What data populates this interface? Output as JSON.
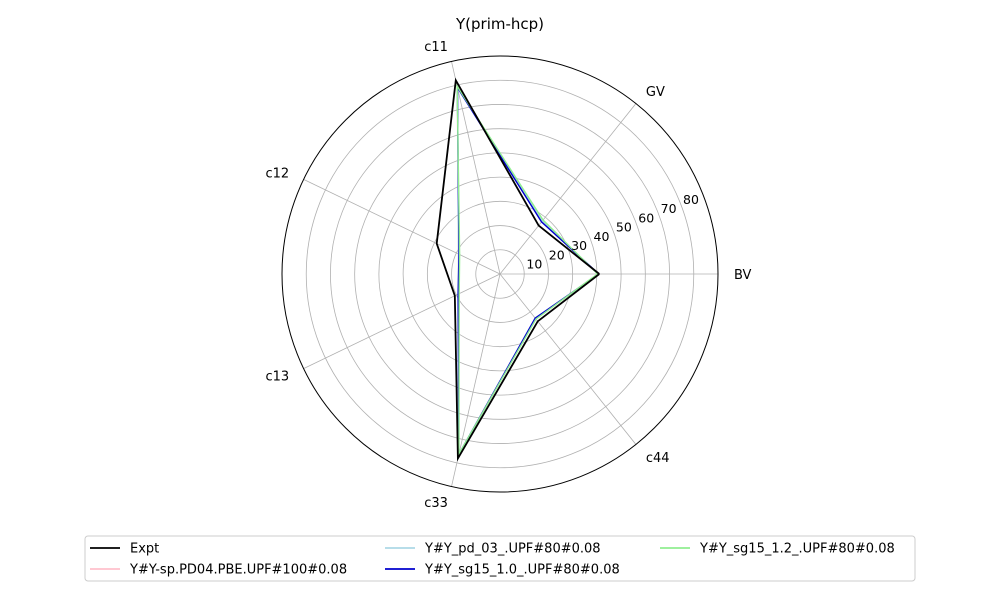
{
  "chart_data": {
    "type": "radar",
    "title": "Y(prim-hcp)",
    "axes": [
      "BV",
      "GV",
      "c11",
      "c12",
      "c13",
      "c33",
      "c44"
    ],
    "rlim": [
      0,
      90
    ],
    "radial_ticks": [
      10,
      20,
      30,
      40,
      50,
      60,
      70,
      80
    ],
    "grid": true,
    "legend_position": "bottom",
    "series": [
      {
        "name": "Expt",
        "color": "#000000",
        "values": [
          41,
          25.6,
          82,
          29,
          20.7,
          78.1,
          25
        ]
      },
      {
        "name": "Y#Y-sp.PD04.PBE.UPF#100#0.08",
        "color": "#ffc0cb",
        "values": [
          40.5,
          28.0,
          79.2,
          19.0,
          19.0,
          76.5,
          23.5
        ]
      },
      {
        "name": "Y#Y_pd_03_.UPF#80#0.08",
        "color": "#add8e6",
        "values": [
          40.5,
          28.0,
          79.0,
          19.0,
          19.0,
          76.3,
          23.5
        ]
      },
      {
        "name": "Y#Y_sg15_1.0_.UPF#80#0.08",
        "color": "#0000cd",
        "values": [
          40.8,
          27.5,
          79.0,
          18.8,
          19.2,
          76.5,
          23.3
        ]
      },
      {
        "name": "Y#Y_sg15_1.2_.UPF#80#0.08",
        "color": "#90ee90",
        "values": [
          40.3,
          28.5,
          79.5,
          18.5,
          18.7,
          76.2,
          23.8
        ]
      }
    ]
  }
}
